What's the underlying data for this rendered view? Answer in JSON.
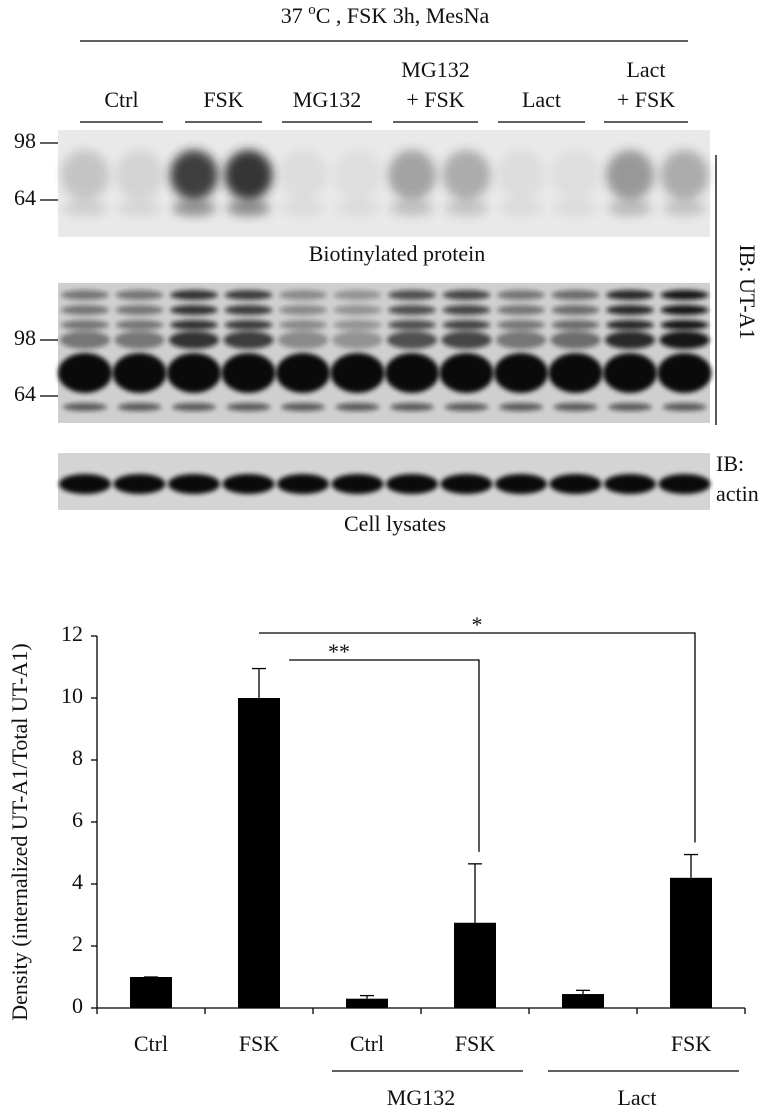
{
  "blot": {
    "condition_parts": [
      "37 ",
      "o",
      "C , FSK 3h, MesNa"
    ],
    "lanes": [
      [
        "Ctrl"
      ],
      [
        "FSK"
      ],
      [
        "MG132"
      ],
      [
        "MG132",
        "+ FSK"
      ],
      [
        "Lact"
      ],
      [
        "Lact",
        "+ FSK"
      ]
    ],
    "markers_top": [
      "98",
      "64"
    ],
    "markers_mid": [
      "98",
      "64"
    ],
    "caption_top": "Biotinylated protein",
    "caption_bottom": "Cell lysates",
    "ib_ut": "IB: UT-A1",
    "ib_actin": [
      "IB:",
      "actin"
    ]
  },
  "chart_data": {
    "type": "bar",
    "y_label": "Density (internalized UT-A1/Total UT-A1)",
    "categories": [
      "Ctrl",
      "FSK",
      "Ctrl",
      "FSK",
      null,
      "FSK"
    ],
    "values": [
      1.0,
      10.0,
      0.3,
      2.75,
      0.45,
      4.2
    ],
    "errors": [
      0,
      0.95,
      0.1,
      1.9,
      0.12,
      0.75
    ],
    "group_labels": [
      "MG132",
      "Lact"
    ],
    "annotations": [
      "*",
      "**"
    ],
    "color": "#000000",
    "ylim": [
      0,
      12
    ],
    "yticks": [
      0,
      2,
      4,
      6,
      8,
      10,
      12
    ]
  }
}
